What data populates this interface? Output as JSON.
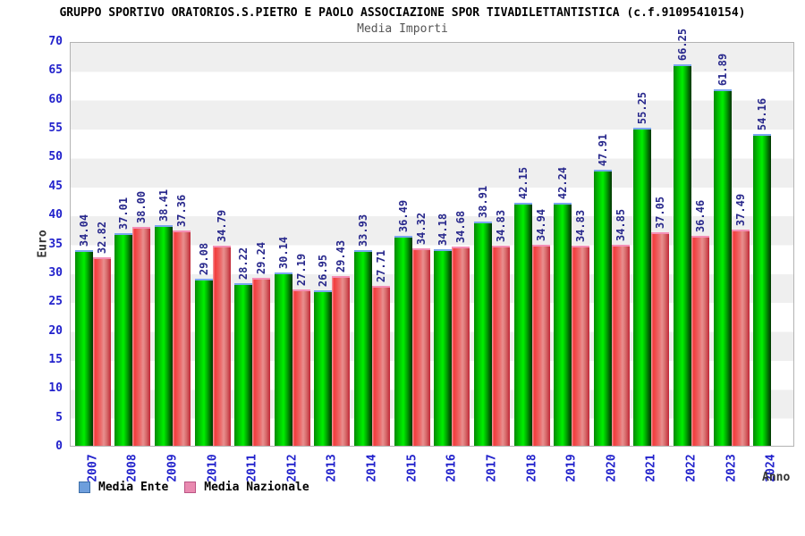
{
  "title": "GRUPPO SPORTIVO ORATORIOS.S.PIETRO E PAOLO ASSOCIAZIONE SPOR TIVADILETTANTISTICA (c.f.91095410154)",
  "subtitle": "Media Importi",
  "y_axis_label": "Euro",
  "x_axis_label": "Anno",
  "legend": [
    {
      "label": "Media Ente",
      "swatch_fill": "#6e9edc",
      "swatch_border": "#3c6ea8"
    },
    {
      "label": "Media Nazionale",
      "swatch_fill": "#e98ab0",
      "swatch_border": "#bb5585"
    }
  ],
  "colors": {
    "bar_green": "#00d400",
    "bar_green_cap": "#7ba6ef",
    "bar_red": "#ec6d6d",
    "bar_red_cap": "#f48fb5",
    "axis_tick_blue": "#2222cc",
    "value_label_navy": "#28288c",
    "band_gray": "#efefef",
    "band_white": "#ffffff"
  },
  "chart_data": {
    "type": "bar",
    "title": "Media Importi",
    "xlabel": "Anno",
    "ylabel": "Euro",
    "ylim": [
      0,
      70
    ],
    "ytick_step": 5,
    "grid": "horizontal-bands",
    "legend_position": "bottom-left",
    "categories": [
      "2007",
      "2008",
      "2009",
      "2010",
      "2011",
      "2012",
      "2013",
      "2014",
      "2015",
      "2016",
      "2017",
      "2018",
      "2019",
      "2020",
      "2021",
      "2022",
      "2023",
      "2024"
    ],
    "series": [
      {
        "name": "Media Ente",
        "values": [
          34.04,
          37.01,
          38.41,
          29.08,
          28.22,
          30.14,
          26.95,
          33.93,
          36.49,
          34.18,
          38.91,
          42.15,
          42.24,
          47.91,
          55.25,
          66.25,
          61.89,
          54.16
        ]
      },
      {
        "name": "Media Nazionale",
        "values": [
          32.82,
          38.0,
          37.36,
          34.79,
          29.24,
          27.19,
          29.43,
          27.71,
          34.32,
          34.68,
          34.83,
          34.94,
          34.83,
          34.85,
          37.05,
          36.46,
          37.49,
          null
        ]
      }
    ]
  }
}
